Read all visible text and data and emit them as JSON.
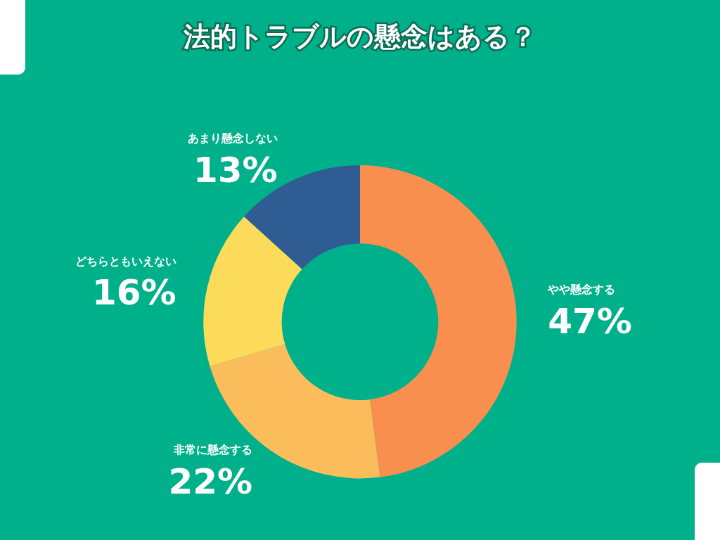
{
  "chart_data": {
    "type": "donut",
    "title": "法的トラブルの懸念はある？",
    "categories": [
      "やや懸念する",
      "非常に懸念する",
      "どちらともいえない",
      "あまり懸念しない"
    ],
    "values": [
      47,
      22,
      16,
      13
    ],
    "value_labels": [
      "47%",
      "22%",
      "16%",
      "13%"
    ],
    "colors": [
      "#f98f4e",
      "#fbbd5b",
      "#fddb5a",
      "#2f5c93"
    ],
    "legend": false
  }
}
